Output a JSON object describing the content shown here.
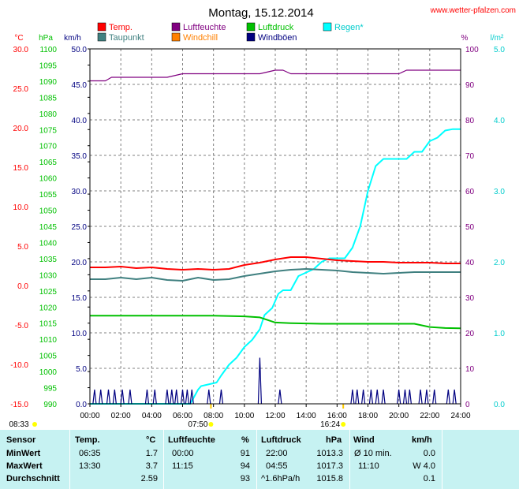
{
  "chart_data": {
    "type": "line",
    "title": "Montag, 15.12.2014",
    "source": "www.wetter-pfalzen.com",
    "legend": [
      {
        "name": "Temp.",
        "color": "#ff0000"
      },
      {
        "name": "Taupunkt",
        "color": "#408080"
      },
      {
        "name": "Luftfeuchte",
        "color": "#800080"
      },
      {
        "name": "Windchill",
        "color": "#ff8000"
      },
      {
        "name": "Luftdruck",
        "color": "#00c000"
      },
      {
        "name": "Windböen",
        "color": "#000080"
      },
      {
        "name": "Regen*",
        "color": "#00ffff"
      }
    ],
    "axes": {
      "temp": {
        "unit": "°C",
        "min": -15,
        "max": 30,
        "ticks": [
          "30.0",
          "25.0",
          "20.0",
          "15.0",
          "10.0",
          "5.0",
          "0.0",
          "-5.0",
          "-10.0",
          "-15.0"
        ],
        "color": "#ff0000"
      },
      "pressure": {
        "unit": "hPa",
        "min": 990,
        "max": 1100,
        "ticks": [
          "1100",
          "1095",
          "1090",
          "1085",
          "1080",
          "1075",
          "1070",
          "1065",
          "1060",
          "1055",
          "1050",
          "1045",
          "1040",
          "1035",
          "1030",
          "1025",
          "1020",
          "1015",
          "1010",
          "1005",
          "1000",
          "995",
          "990"
        ],
        "color": "#00c000"
      },
      "wind": {
        "unit": "km/h",
        "min": 0,
        "max": 50,
        "ticks": [
          "50.0",
          "45.0",
          "40.0",
          "35.0",
          "30.0",
          "25.0",
          "20.0",
          "15.0",
          "10.0",
          "5.0",
          "0.0"
        ],
        "color": "#000080"
      },
      "humidity": {
        "unit": "%",
        "min": 0,
        "max": 100,
        "ticks": [
          "100",
          "90",
          "80",
          "70",
          "60",
          "50",
          "40",
          "30",
          "20",
          "10",
          "0"
        ],
        "color": "#800080"
      },
      "rain": {
        "unit": "l/m²",
        "min": 0,
        "max": 5,
        "ticks": [
          "5.0",
          "4.0",
          "3.0",
          "2.0",
          "1.0",
          "0.0"
        ],
        "color": "#00cccc"
      },
      "x": {
        "min": 0,
        "max": 24,
        "ticks": [
          "00:00",
          "02:00",
          "04:00",
          "06:00",
          "08:00",
          "10:00",
          "12:00",
          "14:00",
          "16:00",
          "18:00",
          "20:00",
          "22:00",
          "24:00"
        ]
      }
    },
    "sun": {
      "sunrise": "08:33",
      "daylight_start": "07:50",
      "daylight_end": "16:24"
    },
    "grid": true,
    "series": [
      {
        "name": "Temp.",
        "axis": "temp",
        "color": "#ff0000",
        "x": [
          0,
          1,
          2,
          3,
          4,
          5,
          6,
          7,
          8,
          9,
          10,
          11,
          12,
          13,
          14,
          15,
          16,
          17,
          18,
          19,
          20,
          21,
          22,
          23,
          24
        ],
        "values": [
          2.3,
          2.3,
          2.4,
          2.2,
          2.3,
          2.1,
          2.0,
          2.1,
          2.0,
          2.1,
          2.6,
          2.9,
          3.3,
          3.6,
          3.6,
          3.4,
          3.2,
          3.1,
          3.0,
          3.0,
          2.9,
          2.9,
          2.9,
          2.8,
          2.8
        ]
      },
      {
        "name": "Taupunkt",
        "axis": "temp",
        "color": "#408080",
        "x": [
          0,
          1,
          2,
          3,
          4,
          5,
          6,
          7,
          8,
          9,
          10,
          11,
          12,
          13,
          14,
          15,
          16,
          17,
          18,
          19,
          20,
          21,
          22,
          23,
          24
        ],
        "values": [
          0.8,
          0.8,
          1.0,
          0.8,
          1.0,
          0.7,
          0.6,
          1.0,
          0.7,
          0.8,
          1.2,
          1.5,
          1.8,
          2.0,
          2.1,
          2.0,
          1.9,
          1.7,
          1.6,
          1.5,
          1.6,
          1.7,
          1.7,
          1.7,
          1.7
        ]
      },
      {
        "name": "Luftfeuchte",
        "axis": "humidity",
        "color": "#800080",
        "x": [
          0,
          1,
          1.4,
          2,
          3,
          4,
          5,
          6,
          7,
          8,
          9,
          10,
          11,
          12,
          12.5,
          13,
          14,
          15,
          16,
          17,
          18,
          19,
          20,
          20.5,
          21,
          22,
          23,
          24
        ],
        "values": [
          91,
          91,
          92,
          92,
          92,
          92,
          92,
          93,
          93,
          93,
          93,
          93,
          93,
          94,
          94,
          93,
          93,
          93,
          93,
          93,
          93,
          93,
          93,
          94,
          94,
          94,
          94,
          94
        ]
      },
      {
        "name": "Luftdruck",
        "axis": "pressure",
        "color": "#00c000",
        "x": [
          0,
          2,
          4,
          6,
          8,
          10,
          11,
          12,
          13,
          14,
          15,
          16,
          17,
          18,
          20,
          21,
          22,
          23,
          24
        ],
        "values": [
          1017.3,
          1017.3,
          1017.3,
          1017.3,
          1017.3,
          1017.1,
          1016.8,
          1015.2,
          1015.0,
          1014.9,
          1014.8,
          1014.8,
          1014.8,
          1014.8,
          1014.8,
          1014.8,
          1013.8,
          1013.5,
          1013.4
        ]
      },
      {
        "name": "Regen*",
        "axis": "rain",
        "color": "#00ffff",
        "x": [
          0,
          6.5,
          7.0,
          7.2,
          8.2,
          8.5,
          9.0,
          9.5,
          10.0,
          10.5,
          11.0,
          11.3,
          11.8,
          12.2,
          12.5,
          13.0,
          13.5,
          14.0,
          14.5,
          15.0,
          15.5,
          16.0,
          16.5,
          17.0,
          17.5,
          18.0,
          18.5,
          19.0,
          19.5,
          20.0,
          20.5,
          21.0,
          21.5,
          22.0,
          22.5,
          23.0,
          23.5,
          24.0
        ],
        "values": [
          0,
          0,
          0.2,
          0.25,
          0.3,
          0.4,
          0.55,
          0.65,
          0.8,
          0.9,
          1.05,
          1.25,
          1.35,
          1.55,
          1.6,
          1.6,
          1.8,
          1.85,
          1.9,
          2.0,
          2.05,
          2.05,
          2.05,
          2.2,
          2.5,
          3.0,
          3.35,
          3.45,
          3.45,
          3.45,
          3.45,
          3.55,
          3.55,
          3.7,
          3.75,
          3.85,
          3.87,
          3.87
        ]
      },
      {
        "name": "Windböen",
        "axis": "wind",
        "color": "#000080",
        "type": "spikes",
        "x": [
          0.3,
          0.7,
          1.2,
          1.6,
          2.1,
          2.6,
          3.7,
          4.2,
          5.0,
          5.3,
          5.6,
          6.0,
          6.3,
          6.6,
          7.7,
          8.5,
          11.0,
          12.3,
          17.0,
          17.3,
          17.7,
          18.2,
          18.6,
          19.0,
          20.0,
          20.4,
          20.7,
          21.4,
          21.8,
          22.3,
          23.2,
          23.6
        ],
        "values": [
          2,
          2,
          2,
          2,
          2,
          2,
          2,
          2,
          2,
          2,
          2,
          2,
          2,
          2,
          2,
          2,
          6.5,
          2,
          2,
          2,
          2,
          2,
          2,
          2,
          2,
          2,
          2,
          2,
          2,
          2,
          2,
          2
        ]
      }
    ]
  },
  "stats": {
    "header": {
      "sensor": "Sensor",
      "temp": "Temp.",
      "temp_unit": "°C",
      "hum": "Luftfeuchte",
      "hum_unit": "%",
      "press": "Luftdruck",
      "press_unit": "hPa",
      "wind": "Wind",
      "wind_unit": "km/h"
    },
    "rows": [
      {
        "label": "MinWert",
        "temp_time": "06:35",
        "temp_val": "1.7",
        "hum_time": "00:00",
        "hum_val": "91",
        "press_time": "22:00",
        "press_val": "1013.3",
        "wind_label": "Ø 10 min.",
        "wind_val": "0.0"
      },
      {
        "label": "MaxWert",
        "temp_time": "13:30",
        "temp_val": "3.7",
        "hum_time": "11:15",
        "hum_val": "94",
        "press_time": "04:55",
        "press_val": "1017.3",
        "wind_label": "11:10",
        "wind_val": "W 4.0"
      },
      {
        "label": "Durchschnitt",
        "temp_time": "",
        "temp_val": "2.59",
        "hum_time": "",
        "hum_val": "93",
        "press_time": "^1.6hPa/h",
        "press_val": "1015.8",
        "wind_label": "",
        "wind_val": "0.1"
      }
    ]
  }
}
